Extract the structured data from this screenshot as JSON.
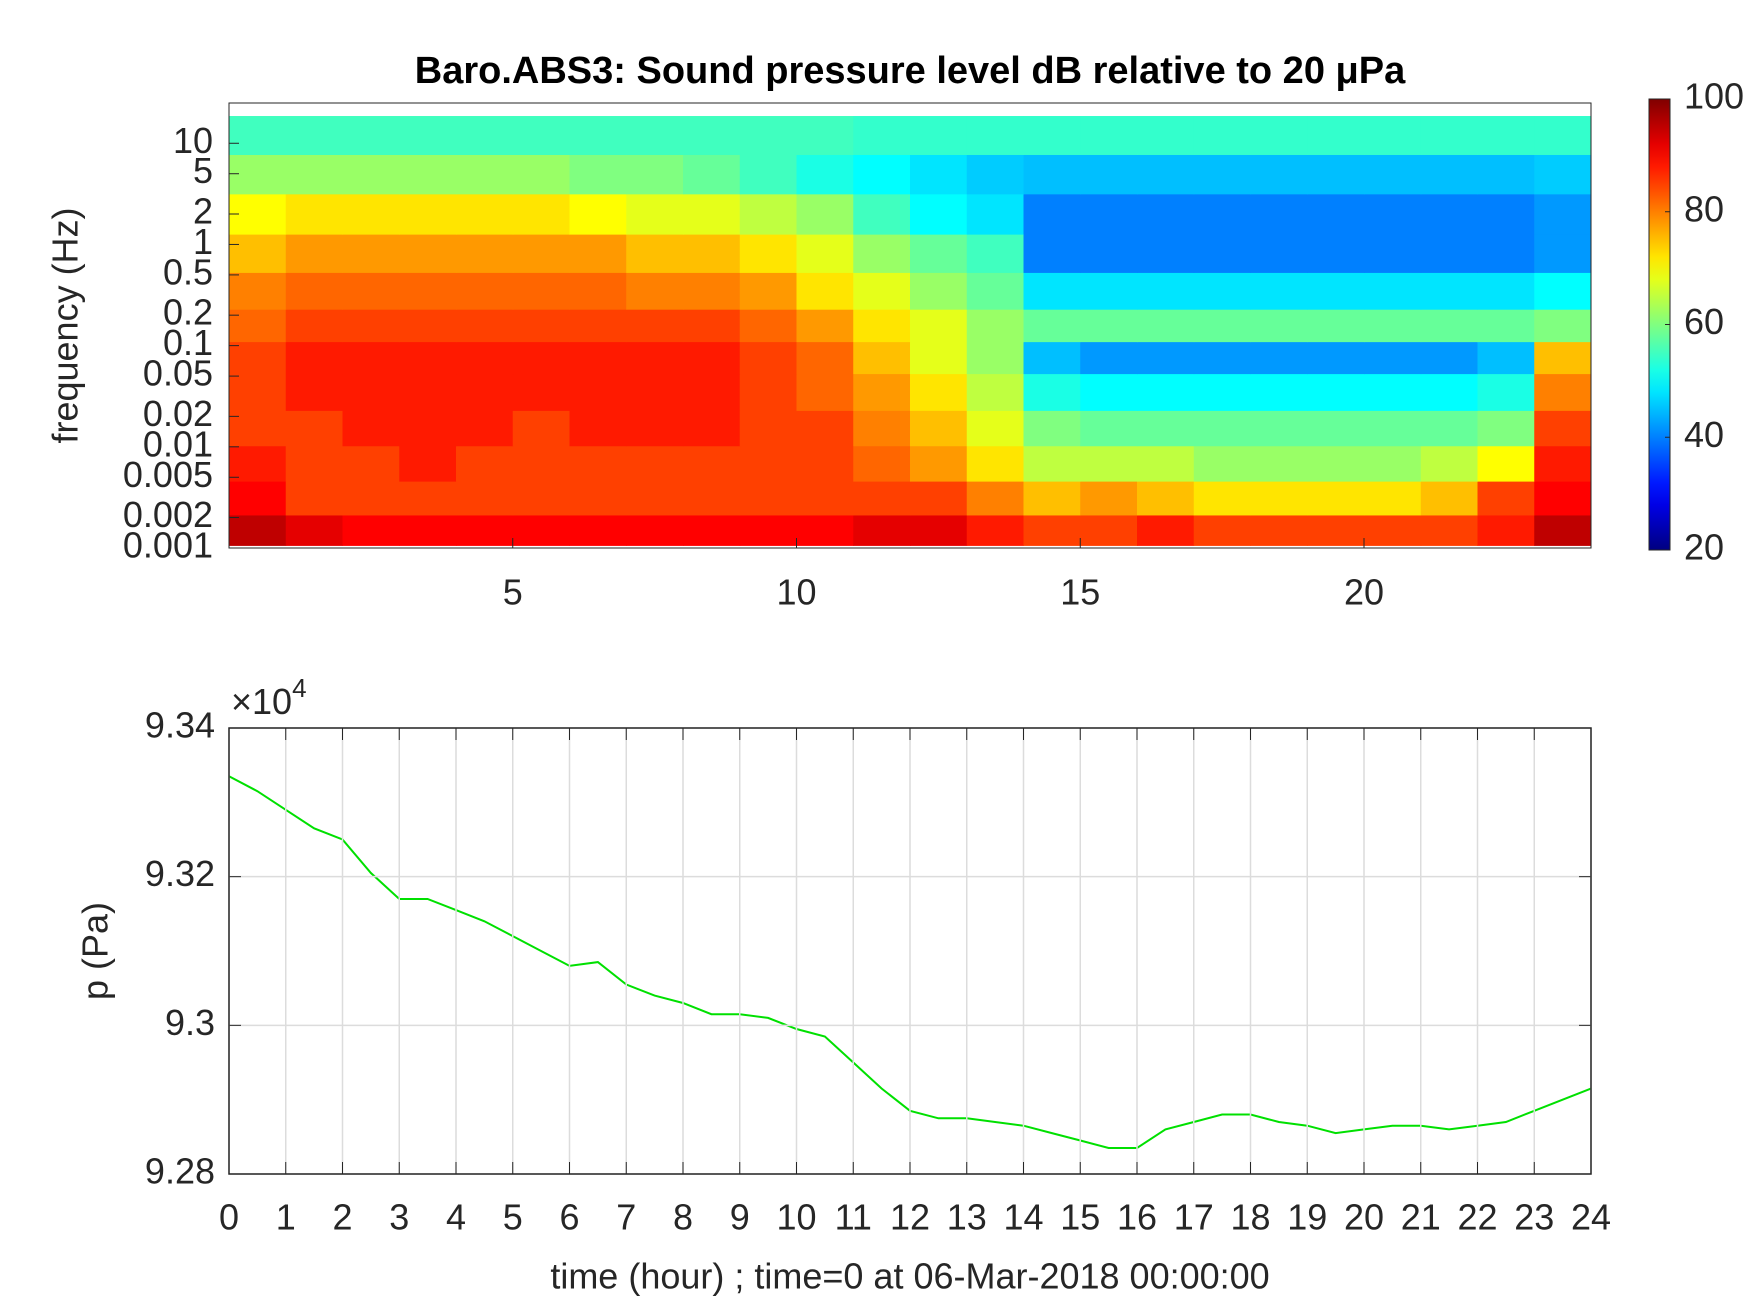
{
  "chart_data": [
    {
      "type": "heatmap",
      "title": "Baro.ABS3: Sound pressure level dB relative to 20 μPa",
      "y_label": "frequency (Hz)",
      "colormap": "jet",
      "clim": [
        20,
        100
      ],
      "cticks": [
        20,
        40,
        60,
        80,
        100
      ],
      "xlim": [
        0,
        24
      ],
      "xticks": [
        5,
        10,
        15,
        20
      ],
      "ylog": true,
      "ylim": [
        0.001,
        25
      ],
      "yticks": [
        0.001,
        0.002,
        0.005,
        0.01,
        0.02,
        0.05,
        0.1,
        0.2,
        0.5,
        1,
        2,
        5,
        10
      ],
      "x": [
        0.5,
        1.5,
        2.5,
        3.5,
        4.5,
        5.5,
        6.5,
        7.5,
        8.5,
        9.5,
        10.5,
        11.5,
        12.5,
        13.5,
        14.5,
        15.5,
        16.5,
        17.5,
        18.5,
        19.5,
        20.5,
        21.5,
        22.5,
        23.5
      ],
      "y": [
        0.0015,
        0.003,
        0.007,
        0.015,
        0.035,
        0.08,
        0.15,
        0.35,
        0.8,
        2,
        5,
        12
      ],
      "values": [
        [
          95,
          92,
          90,
          90,
          90,
          90,
          90,
          90,
          90,
          90,
          90,
          92,
          92,
          88,
          85,
          85,
          88,
          85,
          85,
          85,
          85,
          85,
          88,
          95
        ],
        [
          90,
          85,
          85,
          85,
          85,
          85,
          85,
          85,
          85,
          85,
          85,
          85,
          85,
          80,
          75,
          78,
          75,
          72,
          72,
          72,
          72,
          75,
          85,
          90
        ],
        [
          88,
          85,
          85,
          88,
          85,
          85,
          85,
          85,
          85,
          85,
          85,
          82,
          78,
          72,
          65,
          65,
          65,
          62,
          62,
          62,
          62,
          65,
          70,
          88
        ],
        [
          85,
          85,
          88,
          88,
          88,
          85,
          88,
          88,
          88,
          85,
          85,
          80,
          75,
          68,
          60,
          58,
          58,
          58,
          58,
          58,
          58,
          58,
          60,
          85
        ],
        [
          85,
          88,
          88,
          88,
          88,
          88,
          88,
          88,
          88,
          85,
          82,
          78,
          72,
          65,
          52,
          50,
          50,
          50,
          50,
          50,
          50,
          50,
          52,
          80
        ],
        [
          85,
          88,
          88,
          88,
          88,
          88,
          88,
          88,
          88,
          85,
          82,
          75,
          68,
          62,
          45,
          42,
          42,
          42,
          42,
          42,
          42,
          42,
          45,
          75
        ],
        [
          82,
          85,
          85,
          85,
          85,
          85,
          85,
          85,
          85,
          82,
          78,
          72,
          68,
          62,
          58,
          58,
          58,
          58,
          58,
          58,
          58,
          58,
          58,
          60
        ],
        [
          80,
          82,
          82,
          82,
          82,
          82,
          82,
          80,
          80,
          78,
          72,
          68,
          62,
          58,
          48,
          48,
          48,
          48,
          48,
          48,
          48,
          48,
          48,
          50
        ],
        [
          75,
          78,
          78,
          78,
          78,
          78,
          78,
          75,
          75,
          72,
          68,
          62,
          58,
          55,
          40,
          40,
          40,
          40,
          40,
          40,
          40,
          40,
          40,
          42
        ],
        [
          70,
          72,
          72,
          72,
          72,
          72,
          70,
          68,
          68,
          65,
          62,
          55,
          50,
          48,
          40,
          40,
          40,
          40,
          40,
          40,
          40,
          40,
          40,
          42
        ],
        [
          62,
          62,
          62,
          62,
          62,
          62,
          60,
          60,
          58,
          55,
          52,
          50,
          48,
          46,
          45,
          45,
          45,
          45,
          45,
          45,
          45,
          45,
          45,
          46
        ],
        [
          55,
          55,
          55,
          55,
          55,
          55,
          55,
          55,
          55,
          55,
          55,
          54,
          54,
          54,
          54,
          54,
          54,
          54,
          54,
          54,
          54,
          54,
          54,
          54
        ]
      ]
    },
    {
      "type": "line",
      "x_label": "time (hour) ; time=0 at 06-Mar-2018 00:00:00",
      "y_label": "p (Pa)",
      "y_exponent": {
        "text": "×10",
        "power": "4"
      },
      "color": "#00e000",
      "grid": true,
      "xlim": [
        0,
        24
      ],
      "xticks": [
        0,
        1,
        2,
        3,
        4,
        5,
        6,
        7,
        8,
        9,
        10,
        11,
        12,
        13,
        14,
        15,
        16,
        17,
        18,
        19,
        20,
        21,
        22,
        23,
        24
      ],
      "ylim": [
        92800,
        93400
      ],
      "yticks": [
        {
          "value": 92800,
          "label": "9.28"
        },
        {
          "value": 93000,
          "label": "9.3"
        },
        {
          "value": 93200,
          "label": "9.32"
        },
        {
          "value": 93400,
          "label": "9.34"
        }
      ],
      "x": [
        0,
        0.5,
        1,
        1.5,
        2,
        2.5,
        3,
        3.5,
        4,
        4.5,
        5,
        5.5,
        6,
        6.5,
        7,
        7.5,
        8,
        8.5,
        9,
        9.5,
        10,
        10.5,
        11,
        11.5,
        12,
        12.5,
        13,
        13.5,
        14,
        14.5,
        15,
        15.5,
        16,
        16.5,
        17,
        17.5,
        18,
        18.5,
        19,
        19.5,
        20,
        20.5,
        21,
        21.5,
        22,
        22.5,
        23,
        23.5,
        24
      ],
      "values": [
        93335,
        93315,
        93290,
        93265,
        93250,
        93205,
        93170,
        93170,
        93155,
        93140,
        93120,
        93100,
        93080,
        93085,
        93055,
        93040,
        93030,
        93015,
        93015,
        93010,
        92995,
        92985,
        92950,
        92915,
        92885,
        92875,
        92875,
        92870,
        92865,
        92855,
        92845,
        92835,
        92835,
        92860,
        92870,
        92880,
        92880,
        92870,
        92865,
        92855,
        92860,
        92865,
        92865,
        92860,
        92865,
        92870,
        92885,
        92900,
        92915
      ]
    }
  ]
}
